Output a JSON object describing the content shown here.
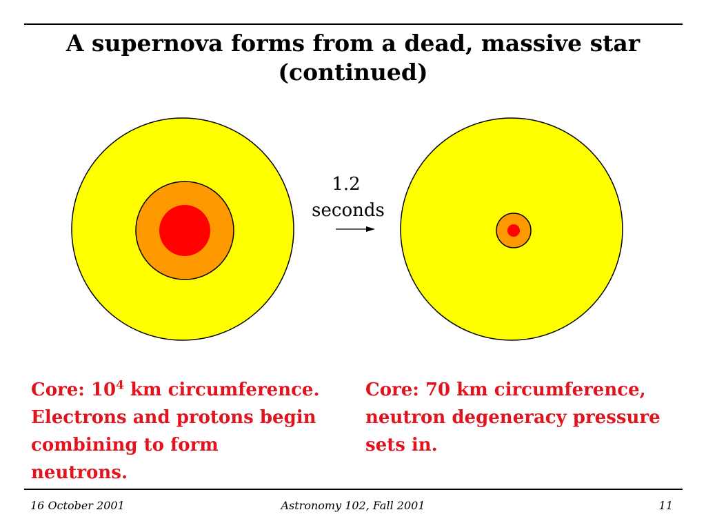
{
  "slide": {
    "title_lines": [
      "A supernova forms from a dead, massive star",
      "(continued)"
    ]
  },
  "diagram": {
    "time_label_lines": [
      "1.2",
      "seconds"
    ],
    "colors": {
      "envelope": "#ffff00",
      "outer_core": "#ff9900",
      "inner_core": "#ff0000",
      "outline": "#000000"
    }
  },
  "captions": {
    "left": {
      "line1_prefix": "Core: 10",
      "line1_superscript": "4",
      "line1_suffix": " km circumference.",
      "line2": "Electrons and protons begin",
      "line3": "combining to form",
      "line4": "neutrons."
    },
    "right": {
      "line1": "Core: 70 km circumference,",
      "line2": "neutron degeneracy pressure",
      "line3": "sets in."
    },
    "color": "#e0141e"
  },
  "footer": {
    "date": "16 October 2001",
    "course": "Astronomy 102, Fall 2001",
    "page_number": "11"
  }
}
